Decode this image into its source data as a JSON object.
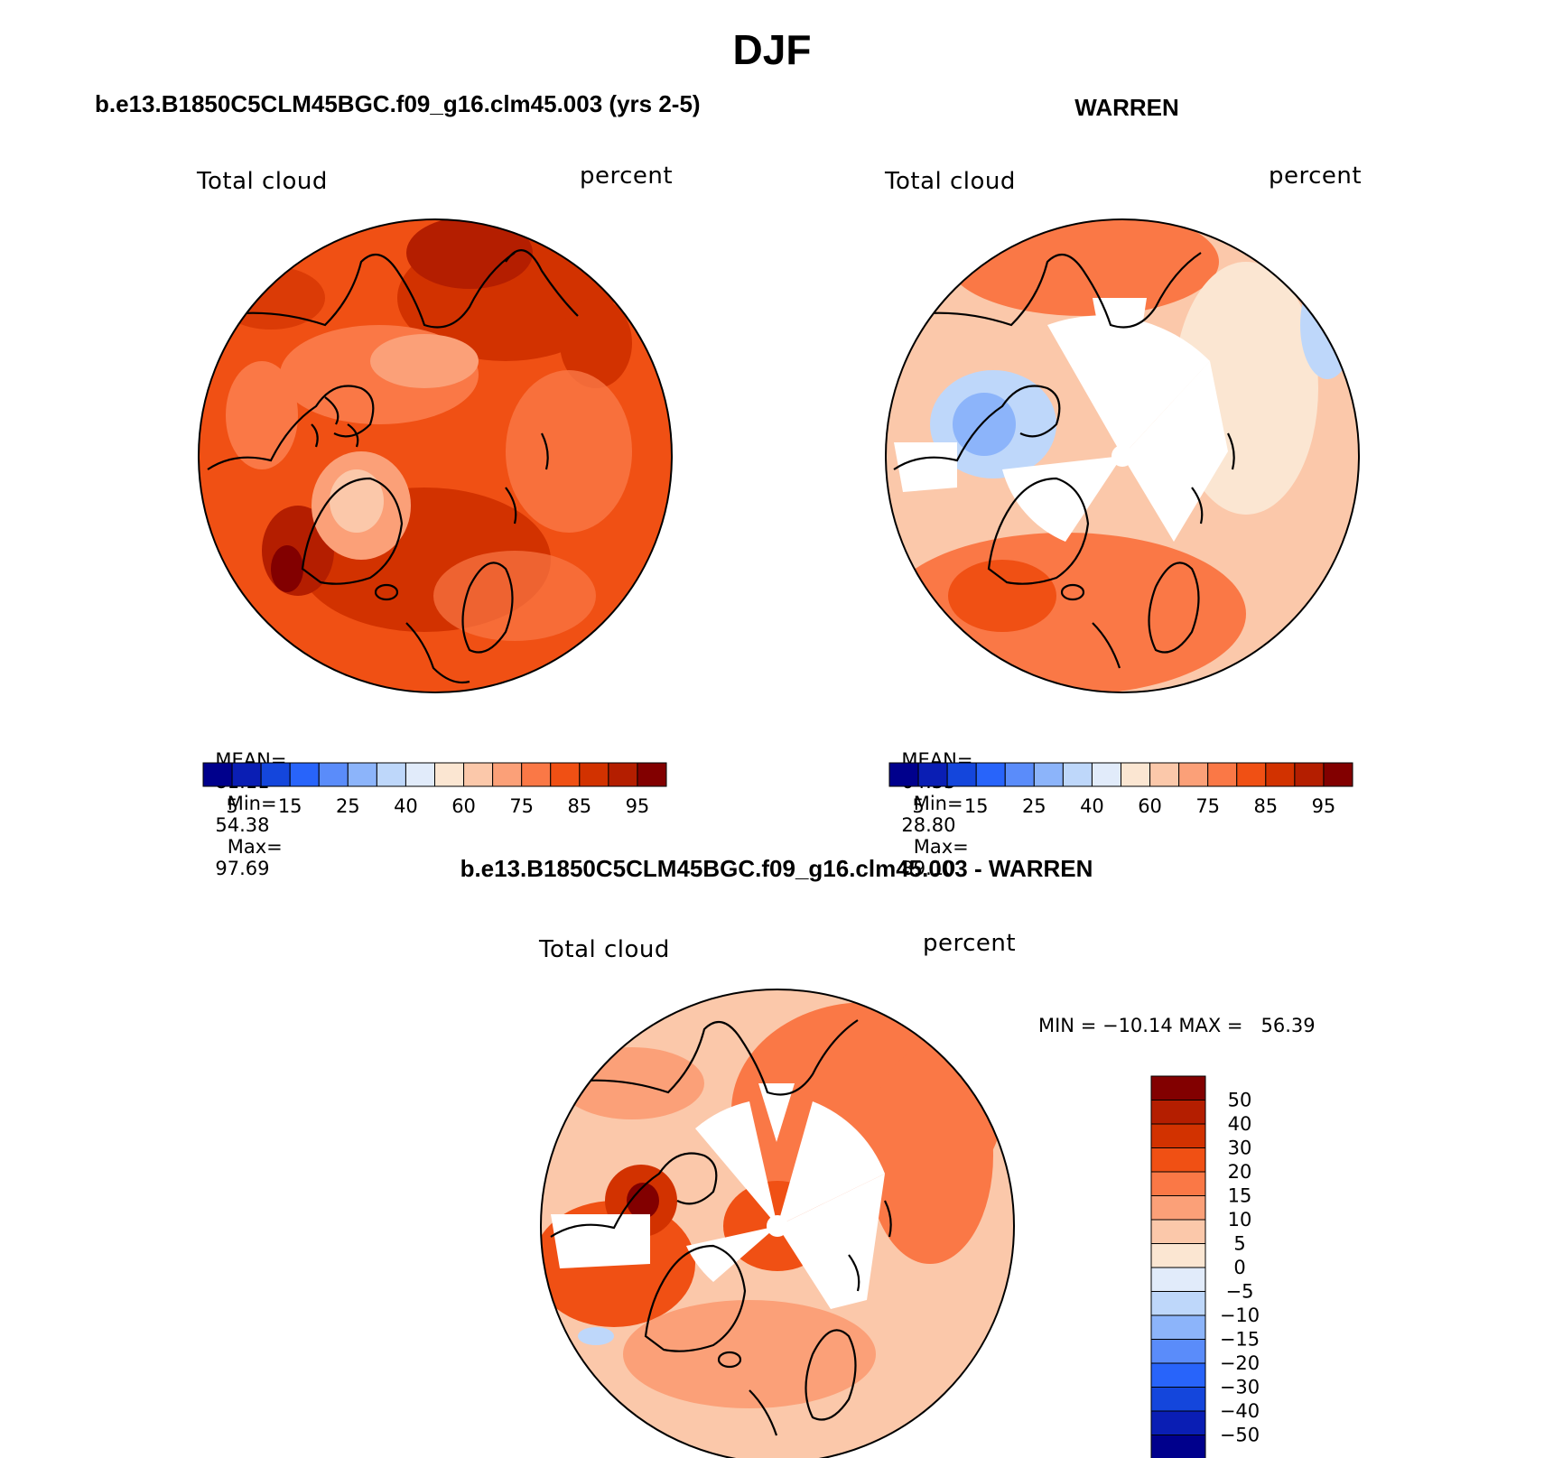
{
  "figure": {
    "title": "DJF"
  },
  "panels": [
    {
      "title": "b.e13.B1850C5CLM45BGC.f09_g16.clm45.003 (yrs 2-5)",
      "variable": "Total cloud",
      "units": "percent",
      "stats": {
        "mean_label": "MEAN=",
        "mean": "81.11",
        "min_label": "Min=",
        "min": "54.38",
        "max_label": "Max=",
        "max": "97.69"
      }
    },
    {
      "title": "WARREN",
      "variable": "Total cloud",
      "units": "percent",
      "stats": {
        "mean_label": "MEAN=",
        "mean": "64.33",
        "min_label": "Min=",
        "min": "28.80",
        "max_label": "Max=",
        "max": "89.10"
      }
    },
    {
      "title": "b.e13.B1850C5CLM45BGC.f09_g16.clm45.003 - WARREN",
      "variable": "Total cloud",
      "units": "percent",
      "stats_text": "MIN = −10.14 MAX =   56.39"
    }
  ],
  "colorbars": {
    "horizontal": {
      "colors": [
        "#00008c",
        "#0a1eb4",
        "#1446dc",
        "#2864fa",
        "#5a8cfa",
        "#8cb4fa",
        "#bed7fa",
        "#e1ebfa",
        "#fbe6d2",
        "#fbc8aa",
        "#fba078",
        "#fa7846",
        "#f05014",
        "#d23200",
        "#b41e00",
        "#820000"
      ],
      "tick_labels": [
        "5",
        "15",
        "25",
        "40",
        "60",
        "75",
        "85",
        "95"
      ]
    },
    "vertical": {
      "colors": [
        "#820000",
        "#b41e00",
        "#d23200",
        "#f05014",
        "#fa7846",
        "#fba078",
        "#fbc8aa",
        "#fbe6d2",
        "#e1ebfa",
        "#bed7fa",
        "#8cb4fa",
        "#5a8cfa",
        "#2864fa",
        "#1446dc",
        "#0a1eb4",
        "#00008c"
      ],
      "tick_labels": [
        "50",
        "40",
        "30",
        "20",
        "15",
        "10",
        "5",
        "0",
        "−5",
        "−10",
        "−15",
        "−20",
        "−30",
        "−40",
        "−50"
      ]
    }
  },
  "maps": {
    "projection": "north polar stereographic",
    "land_color": "#ffffff",
    "coastline_color": "#000000"
  }
}
